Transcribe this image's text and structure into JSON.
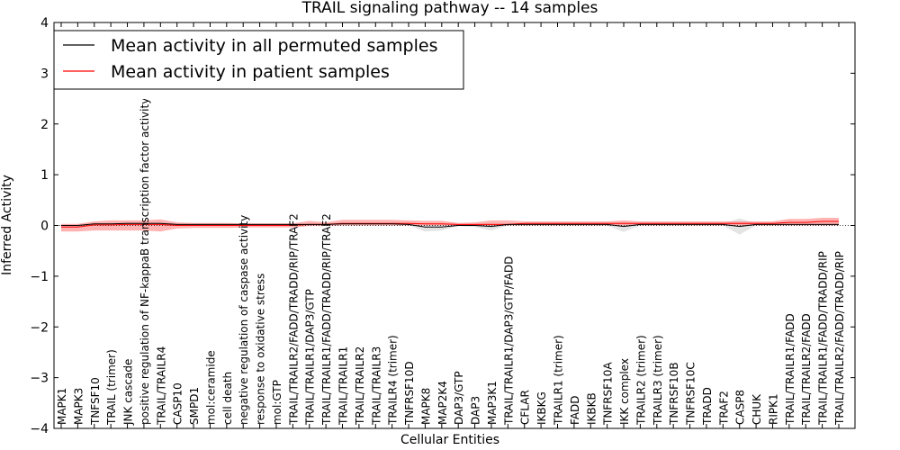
{
  "chart_data": {
    "type": "line",
    "title": "TRAIL signaling pathway -- 14 samples",
    "xlabel": "Cellular Entities",
    "ylabel": "Inferred Activity",
    "ylim": [
      -4,
      4
    ],
    "yticks": [
      -4,
      -3,
      -2,
      -1,
      0,
      1,
      2,
      3,
      4
    ],
    "grid": false,
    "legend_position": "top-left",
    "categories": [
      "MAPK1",
      "MAPK3",
      "TNFSF10",
      "TRAIL (trimer)",
      "JNK cascade",
      "positive regulation of NF-kappaB transcription factor activity",
      "TRAIL/TRAILR4",
      "CASP10",
      "SMPD1",
      "mol:ceramide",
      "cell death",
      "negative regulation of caspase activity",
      "response to oxidative stress",
      "mol:GTP",
      "TRAIL/TRAILR2/FADD/TRADD/RIP/TRAF2",
      "TRAIL/TRAILR1/DAP3/GTP",
      "TRAIL/TRAILR1/FADD/TRADD/RIP/TRAF2",
      "TRAIL/TRAILR1",
      "TRAIL/TRAILR2",
      "TRAIL/TRAILR3",
      "TRAILR4 (trimer)",
      "TNFRSF10D",
      "MAPK8",
      "MAP2K4",
      "DAP3/GTP",
      "DAP3",
      "MAP3K1",
      "TRAIL/TRAILR1/DAP3/GTP/FADD",
      "CFLAR",
      "IKBKG",
      "TRAILR1 (trimer)",
      "FADD",
      "IKBKB",
      "TNFRSF10A",
      "IKK complex",
      "TRAILR2 (trimer)",
      "TRAILR3 (trimer)",
      "TNFRSF10B",
      "TNFRSF10C",
      "TRADD",
      "TRAF2",
      "CASP8",
      "CHUK",
      "RIPK1",
      "TRAIL/TRAILR1/FADD",
      "TRAIL/TRAILR2/FADD",
      "TRAIL/TRAILR1/FADD/TRADD/RIP",
      "TRAIL/TRAILR2/FADD/TRADD/RIP"
    ],
    "series": [
      {
        "name": "Mean activity in all permuted samples",
        "color": "#000000",
        "band_color": "#bbbbbb",
        "values": [
          0.0,
          0.0,
          0.03,
          0.03,
          0.04,
          0.04,
          0.04,
          0.02,
          0.02,
          0.02,
          0.02,
          0.02,
          0.02,
          0.02,
          0.02,
          0.02,
          0.02,
          0.03,
          0.03,
          0.03,
          0.03,
          0.02,
          -0.03,
          -0.03,
          0.0,
          0.0,
          -0.02,
          0.02,
          0.02,
          0.02,
          0.02,
          0.02,
          0.02,
          0.02,
          -0.02,
          0.02,
          0.02,
          0.02,
          0.02,
          0.02,
          0.02,
          -0.02,
          0.02,
          0.02,
          0.02,
          0.02,
          0.02,
          0.02
        ],
        "lower": [
          -0.03,
          -0.03,
          0.0,
          0.0,
          0.0,
          0.0,
          0.0,
          0.0,
          0.0,
          0.0,
          0.0,
          0.0,
          0.0,
          0.0,
          0.0,
          0.0,
          0.0,
          0.0,
          0.0,
          0.0,
          0.0,
          0.0,
          -0.12,
          -0.1,
          -0.01,
          -0.03,
          -0.1,
          0.0,
          0.0,
          0.0,
          0.0,
          0.0,
          0.0,
          0.0,
          -0.13,
          0.0,
          0.0,
          0.0,
          0.0,
          0.0,
          0.0,
          -0.18,
          0.0,
          0.0,
          0.0,
          0.0,
          0.0,
          0.0
        ],
        "upper": [
          0.02,
          0.02,
          0.05,
          0.05,
          0.06,
          0.06,
          0.06,
          0.04,
          0.04,
          0.04,
          0.04,
          0.04,
          0.04,
          0.04,
          0.04,
          0.04,
          0.04,
          0.05,
          0.05,
          0.05,
          0.05,
          0.04,
          0.04,
          0.04,
          0.02,
          0.03,
          0.05,
          0.04,
          0.04,
          0.04,
          0.04,
          0.04,
          0.04,
          0.04,
          0.07,
          0.04,
          0.04,
          0.04,
          0.04,
          0.04,
          0.04,
          0.14,
          0.04,
          0.04,
          0.04,
          0.04,
          0.04,
          0.04
        ]
      },
      {
        "name": "Mean activity in patient samples",
        "color": "#ff0000",
        "band_color": "#ff8080",
        "values": [
          -0.03,
          -0.03,
          0.01,
          0.01,
          0.02,
          0.02,
          0.02,
          0.0,
          0.0,
          0.0,
          0.0,
          0.0,
          0.0,
          0.0,
          0.0,
          0.02,
          0.02,
          0.04,
          0.04,
          0.04,
          0.04,
          0.04,
          0.03,
          0.03,
          0.02,
          0.02,
          0.02,
          0.02,
          0.04,
          0.04,
          0.04,
          0.04,
          0.04,
          0.04,
          0.04,
          0.04,
          0.04,
          0.04,
          0.04,
          0.04,
          0.04,
          0.04,
          0.04,
          0.04,
          0.06,
          0.06,
          0.08,
          0.08
        ],
        "lower": [
          -0.12,
          -0.12,
          -0.1,
          -0.1,
          -0.1,
          -0.1,
          -0.12,
          -0.06,
          -0.05,
          -0.05,
          -0.05,
          -0.04,
          -0.04,
          -0.04,
          -0.04,
          -0.01,
          -0.01,
          0.0,
          0.0,
          0.0,
          0.0,
          0.0,
          0.0,
          0.0,
          0.0,
          0.0,
          0.0,
          0.0,
          0.0,
          0.0,
          0.0,
          0.0,
          0.0,
          0.0,
          0.0,
          0.0,
          0.0,
          0.0,
          0.0,
          0.0,
          0.0,
          0.0,
          0.0,
          0.0,
          0.0,
          0.0,
          0.0,
          0.0
        ],
        "upper": [
          0.03,
          0.03,
          0.08,
          0.1,
          0.1,
          0.1,
          0.12,
          0.06,
          0.05,
          0.05,
          0.05,
          0.04,
          0.04,
          0.04,
          0.04,
          0.09,
          0.06,
          0.11,
          0.11,
          0.11,
          0.11,
          0.1,
          0.09,
          0.09,
          0.05,
          0.06,
          0.1,
          0.1,
          0.08,
          0.08,
          0.08,
          0.08,
          0.08,
          0.08,
          0.1,
          0.08,
          0.08,
          0.08,
          0.08,
          0.08,
          0.08,
          0.08,
          0.08,
          0.08,
          0.13,
          0.13,
          0.15,
          0.15
        ]
      }
    ],
    "baseline": 0
  }
}
